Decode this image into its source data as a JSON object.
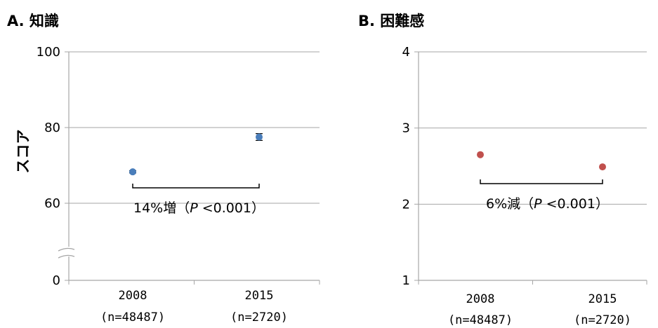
{
  "colors": {
    "series_a": "#4a7ebb",
    "series_b": "#c0504d",
    "grid": "#a6a6a6"
  },
  "chart_data": [
    {
      "type": "scatter",
      "title": "A. 知識",
      "ylabel": "スコア",
      "categories": [
        "2008",
        "2015"
      ],
      "category_sublabels": [
        "(n=48487)",
        "(n=2720)"
      ],
      "values": [
        68.3,
        77.5
      ],
      "errors": [
        0.3,
        0.9
      ],
      "ylim": [
        0,
        100
      ],
      "yticks": [
        "0",
        "60",
        "80",
        "100"
      ],
      "axis_break": true,
      "annotation": {
        "prefix": "14%増（",
        "p": "P",
        "suffix": "<0.001）"
      },
      "grid": true
    },
    {
      "type": "scatter",
      "title": "B. 困難感",
      "ylabel": "",
      "categories": [
        "2008",
        "2015"
      ],
      "category_sublabels": [
        "(n=48487)",
        "(n=2720)"
      ],
      "values": [
        2.65,
        2.49
      ],
      "errors": [
        0.01,
        0.02
      ],
      "ylim": [
        1,
        4
      ],
      "yticks": [
        "1",
        "2",
        "3",
        "4"
      ],
      "axis_break": false,
      "annotation": {
        "prefix": "6%減（",
        "p": "P",
        "suffix": "<0.001）"
      },
      "grid": true
    }
  ]
}
